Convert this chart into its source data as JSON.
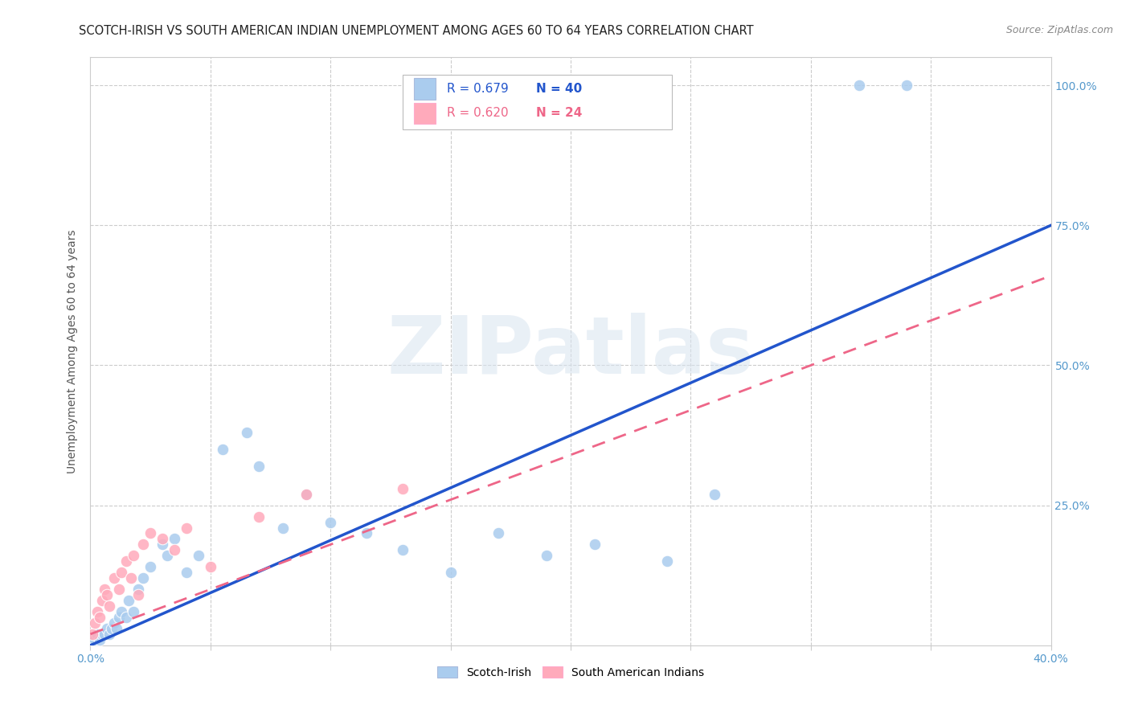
{
  "title": "SCOTCH-IRISH VS SOUTH AMERICAN INDIAN UNEMPLOYMENT AMONG AGES 60 TO 64 YEARS CORRELATION CHART",
  "source": "Source: ZipAtlas.com",
  "ylabel": "Unemployment Among Ages 60 to 64 years",
  "xlim": [
    0,
    0.4
  ],
  "ylim": [
    0,
    1.05
  ],
  "background_color": "#ffffff",
  "grid_color": "#cccccc",
  "watermark_text": "ZIPatlas",
  "watermark_color": "#d8e4f0",
  "legend_r1": "R = 0.679",
  "legend_n1": "N = 40",
  "legend_r2": "R = 0.620",
  "legend_n2": "N = 24",
  "scotch_irish_color": "#aaccee",
  "south_american_color": "#ffaabb",
  "scotch_irish_line_color": "#2255cc",
  "south_american_line_color": "#ee6688",
  "tick_color": "#5599cc",
  "scotch_irish_x": [
    0.001,
    0.002,
    0.003,
    0.004,
    0.005,
    0.006,
    0.007,
    0.008,
    0.009,
    0.01,
    0.011,
    0.012,
    0.013,
    0.015,
    0.016,
    0.018,
    0.02,
    0.022,
    0.025,
    0.03,
    0.032,
    0.035,
    0.04,
    0.045,
    0.055,
    0.065,
    0.07,
    0.08,
    0.09,
    0.1,
    0.115,
    0.13,
    0.15,
    0.17,
    0.19,
    0.21,
    0.24,
    0.26,
    0.32,
    0.34
  ],
  "scotch_irish_y": [
    0.01,
    0.01,
    0.02,
    0.01,
    0.02,
    0.02,
    0.03,
    0.02,
    0.03,
    0.04,
    0.03,
    0.05,
    0.06,
    0.05,
    0.08,
    0.06,
    0.1,
    0.12,
    0.14,
    0.18,
    0.16,
    0.19,
    0.13,
    0.16,
    0.35,
    0.38,
    0.32,
    0.21,
    0.27,
    0.22,
    0.2,
    0.17,
    0.13,
    0.2,
    0.16,
    0.18,
    0.15,
    0.27,
    1.0,
    1.0
  ],
  "south_american_x": [
    0.001,
    0.002,
    0.003,
    0.004,
    0.005,
    0.006,
    0.007,
    0.008,
    0.01,
    0.012,
    0.013,
    0.015,
    0.017,
    0.018,
    0.02,
    0.022,
    0.025,
    0.03,
    0.035,
    0.04,
    0.05,
    0.07,
    0.09,
    0.13
  ],
  "south_american_y": [
    0.02,
    0.04,
    0.06,
    0.05,
    0.08,
    0.1,
    0.09,
    0.07,
    0.12,
    0.1,
    0.13,
    0.15,
    0.12,
    0.16,
    0.09,
    0.18,
    0.2,
    0.19,
    0.17,
    0.21,
    0.14,
    0.23,
    0.27,
    0.28
  ]
}
